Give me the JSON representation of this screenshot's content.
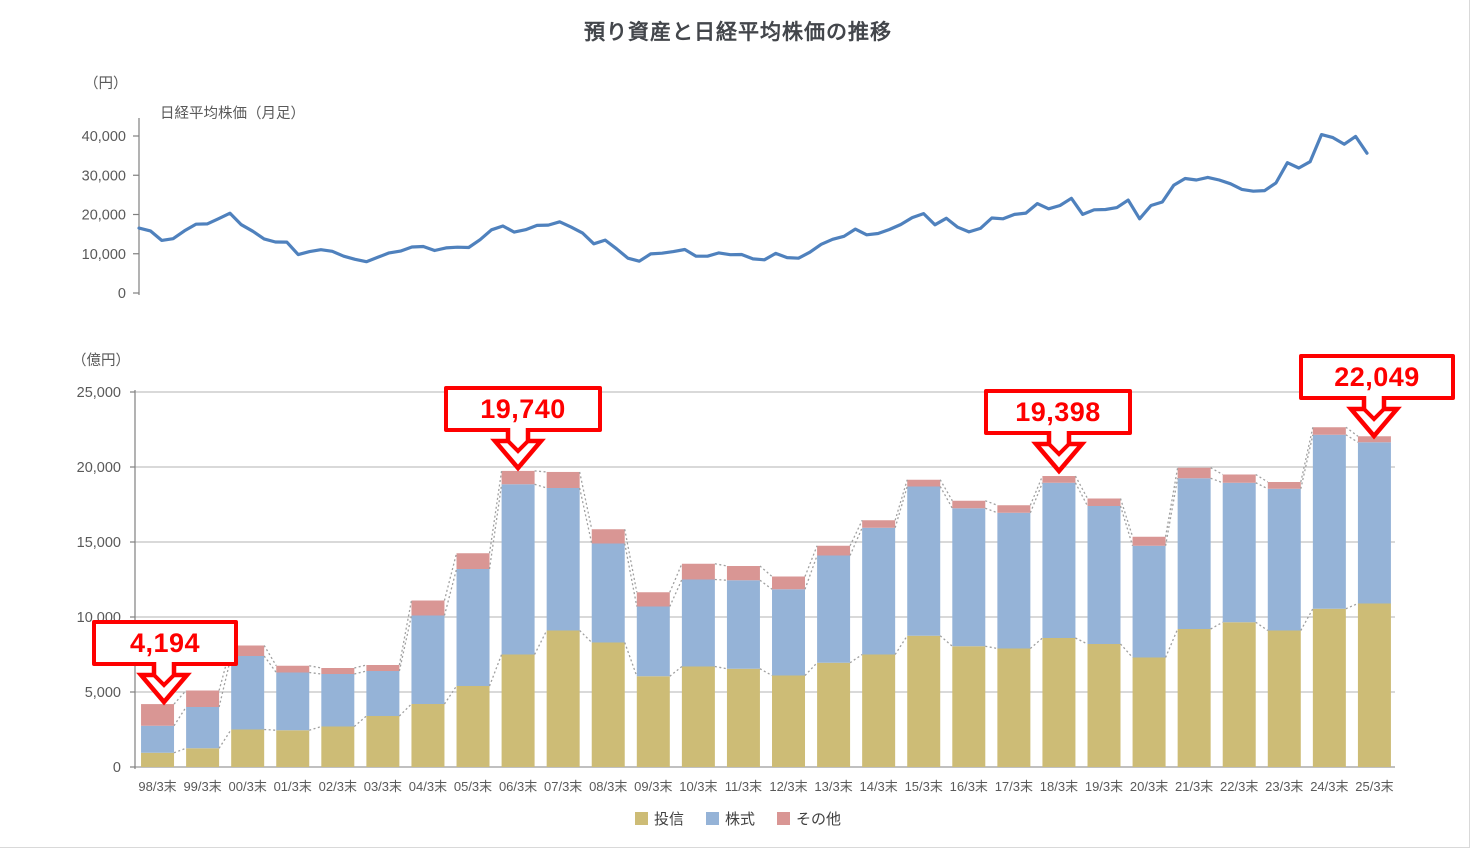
{
  "title": "預り資産と日経平均株価の推移",
  "legend": [
    {
      "label": "投信",
      "color": "#cdbc76"
    },
    {
      "label": "株式",
      "color": "#95b3d7"
    },
    {
      "label": "その他",
      "color": "#d99694"
    }
  ],
  "chart_data": [
    {
      "type": "line",
      "title": "日経平均株価（月足）",
      "ylabel": "（円）",
      "ylim": [
        0,
        42500
      ],
      "yticks": [
        0,
        10000,
        20000,
        30000,
        40000
      ],
      "grid": false,
      "line_color": "#4f81bd",
      "x_start": 1998.25,
      "x_step": 0.25,
      "x_end": 2025.25,
      "values": [
        16527,
        15830,
        13406,
        13842,
        15837,
        17530,
        17605,
        18934,
        20337,
        17411,
        15747,
        13786,
        12999,
        12969,
        9775,
        10543,
        11025,
        10622,
        9383,
        8579,
        7973,
        9083,
        10219,
        10677,
        11715,
        11859,
        10823,
        11489,
        11669,
        11584,
        13574,
        16111,
        17060,
        15505,
        16128,
        17226,
        17288,
        18138,
        16786,
        15308,
        12526,
        13481,
        11260,
        8860,
        8110,
        9958,
        10133,
        10546,
        11090,
        9383,
        9369,
        10229,
        9755,
        9816,
        8700,
        8455,
        10084,
        9007,
        8870,
        10395,
        12398,
        13677,
        14456,
        16291,
        14828,
        15162,
        16174,
        17451,
        19207,
        20236,
        17388,
        19034,
        16759,
        15576,
        16450,
        19114,
        18909,
        20033,
        20356,
        22765,
        21454,
        22305,
        24120,
        20015,
        21206,
        21276,
        21756,
        23657,
        18917,
        22288,
        23185,
        27444,
        29179,
        28792,
        29453,
        28792,
        27821,
        26393,
        25937,
        26095,
        28041,
        33189,
        31858,
        33464,
        40369,
        39583,
        37920,
        39895,
        35618
      ]
    },
    {
      "type": "bar",
      "stacked": true,
      "ylabel": "（億円）",
      "ylim": [
        0,
        25000
      ],
      "yticks": [
        0,
        5000,
        10000,
        15000,
        20000,
        25000
      ],
      "grid": true,
      "legend_position": "bottom",
      "connector_lines": true,
      "categories": [
        "98/3末",
        "99/3末",
        "00/3末",
        "01/3末",
        "02/3末",
        "03/3末",
        "04/3末",
        "05/3末",
        "06/3末",
        "07/3末",
        "08/3末",
        "09/3末",
        "10/3末",
        "11/3末",
        "12/3末",
        "13/3末",
        "14/3末",
        "15/3末",
        "16/3末",
        "17/3末",
        "18/3末",
        "19/3末",
        "20/3末",
        "21/3末",
        "22/3末",
        "23/3末",
        "24/3末",
        "25/3末"
      ],
      "series": [
        {
          "name": "投信",
          "color": "#cdbc76",
          "values": [
            950,
            1250,
            2500,
            2450,
            2700,
            3400,
            4200,
            5400,
            7500,
            9100,
            8300,
            6050,
            6700,
            6550,
            6100,
            6950,
            7500,
            8750,
            8050,
            7900,
            8600,
            8200,
            7300,
            9200,
            9650,
            9100,
            10550,
            10900
          ]
        },
        {
          "name": "株式",
          "color": "#95b3d7",
          "values": [
            1800,
            2750,
            4900,
            3850,
            3500,
            3000,
            5900,
            7800,
            11350,
            9500,
            6600,
            4650,
            5800,
            5900,
            5750,
            7150,
            8450,
            9950,
            9200,
            9050,
            10350,
            9200,
            7450,
            10050,
            9300,
            9450,
            11600,
            10750
          ]
        },
        {
          "name": "その他",
          "color": "#d99694",
          "values": [
            1444,
            1100,
            700,
            450,
            400,
            400,
            1000,
            1050,
            890,
            1070,
            950,
            950,
            1050,
            950,
            850,
            650,
            500,
            450,
            500,
            500,
            448,
            500,
            600,
            700,
            550,
            450,
            500,
            399
          ]
        }
      ],
      "annotations": [
        {
          "bar": "98/3末",
          "value": "4,194"
        },
        {
          "bar": "06/3末",
          "value": "19,740"
        },
        {
          "bar": "18/3末",
          "value": "19,398"
        },
        {
          "bar": "25/3末",
          "value": "22,049"
        }
      ]
    }
  ]
}
